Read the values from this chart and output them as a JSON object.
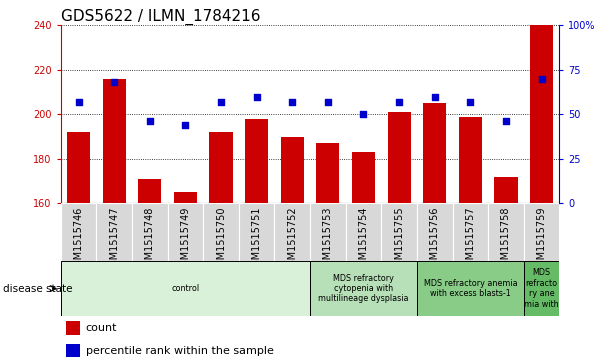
{
  "title": "GDS5622 / ILMN_1784216",
  "samples": [
    "GSM1515746",
    "GSM1515747",
    "GSM1515748",
    "GSM1515749",
    "GSM1515750",
    "GSM1515751",
    "GSM1515752",
    "GSM1515753",
    "GSM1515754",
    "GSM1515755",
    "GSM1515756",
    "GSM1515757",
    "GSM1515758",
    "GSM1515759"
  ],
  "counts": [
    192,
    216,
    171,
    165,
    192,
    198,
    190,
    187,
    183,
    201,
    205,
    199,
    172,
    240
  ],
  "percentile_ranks": [
    57,
    68,
    46,
    44,
    57,
    60,
    57,
    57,
    50,
    57,
    60,
    57,
    46,
    70
  ],
  "ylim_left": [
    160,
    240
  ],
  "ylim_right": [
    0,
    100
  ],
  "right_yticks": [
    0,
    25,
    50,
    75,
    100
  ],
  "right_ytick_labels": [
    "0",
    "25",
    "50",
    "75",
    "100%"
  ],
  "left_yticks": [
    160,
    180,
    200,
    220,
    240
  ],
  "bar_color": "#cc0000",
  "dot_color": "#0000cc",
  "cell_color": "#d8d8d8",
  "disease_groups": [
    {
      "label": "control",
      "start": 0,
      "end": 7,
      "color": "#d9f0d9"
    },
    {
      "label": "MDS refractory\ncytopenia with\nmultilineage dysplasia",
      "start": 7,
      "end": 10,
      "color": "#b8e0b8"
    },
    {
      "label": "MDS refractory anemia\nwith excess blasts-1",
      "start": 10,
      "end": 13,
      "color": "#88cc88"
    },
    {
      "label": "MDS\nrefracto\nry ane\nmia with",
      "start": 13,
      "end": 14,
      "color": "#66bb66"
    }
  ],
  "title_fontsize": 11,
  "tick_fontsize": 7,
  "legend_fontsize": 8
}
